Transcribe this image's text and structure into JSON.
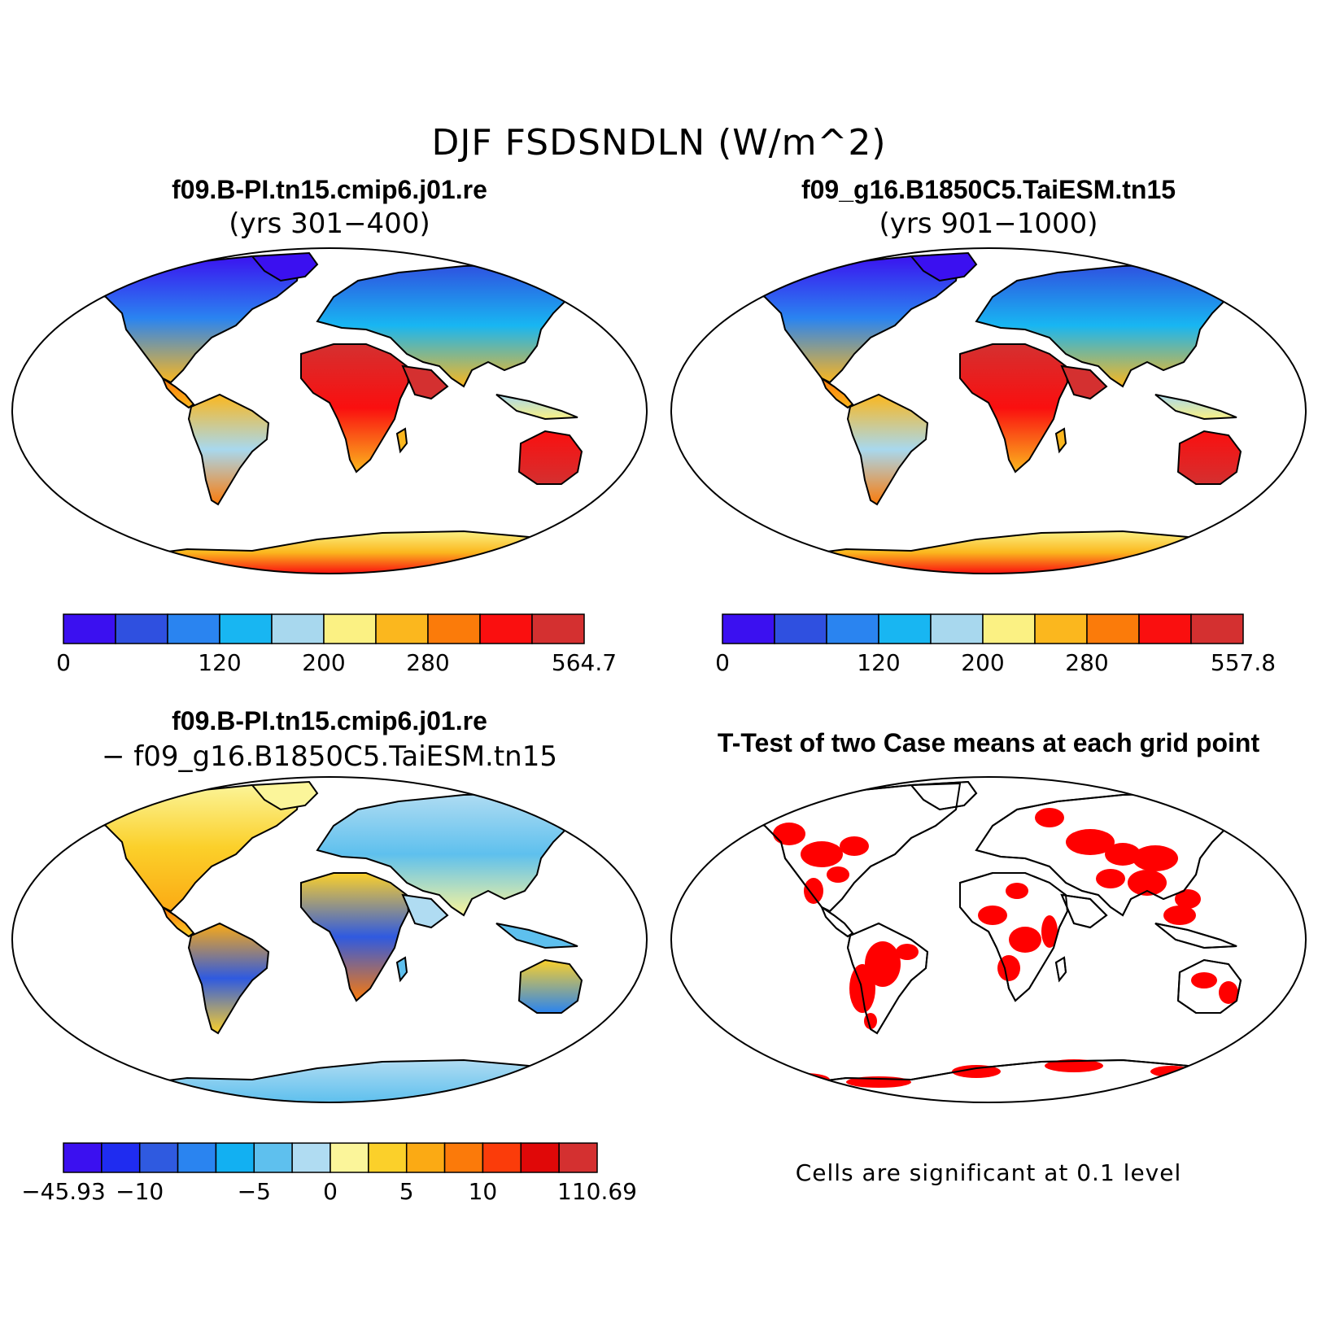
{
  "title": "DJF FSDSNDLN (W/m^2)",
  "panels": [
    {
      "id": "case1",
      "title": "f09.B-PI.tn15.cmip6.j01.re",
      "subtitle": "(yrs 301−400)",
      "colorbar": {
        "colors": [
          "#3b10f0",
          "#2f50e0",
          "#2a84f0",
          "#18b6f2",
          "#a8d8ee",
          "#fbf183",
          "#fbb71e",
          "#fb7b0a",
          "#fa0f0f",
          "#d43030"
        ],
        "ticks": [
          {
            "label": "0",
            "index": 0
          },
          {
            "label": "120",
            "index": 3
          },
          {
            "label": "200",
            "index": 5
          },
          {
            "label": "280",
            "index": 7
          },
          {
            "label": "564.7",
            "index": 10
          }
        ]
      }
    },
    {
      "id": "case2",
      "title": "f09_g16.B1850C5.TaiESM.tn15",
      "subtitle": "(yrs 901−1000)",
      "colorbar": {
        "colors": [
          "#3b10f0",
          "#2f50e0",
          "#2a84f0",
          "#18b6f2",
          "#a8d8ee",
          "#fbf183",
          "#fbb71e",
          "#fb7b0a",
          "#fa0f0f",
          "#d43030"
        ],
        "ticks": [
          {
            "label": "0",
            "index": 0
          },
          {
            "label": "120",
            "index": 3
          },
          {
            "label": "200",
            "index": 5
          },
          {
            "label": "280",
            "index": 7
          },
          {
            "label": "557.8",
            "index": 10
          }
        ]
      }
    },
    {
      "id": "diff",
      "title": "f09.B-PI.tn15.cmip6.j01.re",
      "subtitle": "− f09_g16.B1850C5.TaiESM.tn15",
      "colorbar": {
        "colors": [
          "#3b10f0",
          "#1f2cf0",
          "#2f5ae0",
          "#2a84f0",
          "#12b0f2",
          "#5ec0ee",
          "#b0dcf2",
          "#fbf59a",
          "#fbd02a",
          "#fbaa14",
          "#fb7a0a",
          "#fb3c0a",
          "#e00808",
          "#d43030"
        ],
        "ticks": [
          {
            "label": "−45.93",
            "index": 0
          },
          {
            "label": "−10",
            "index": 2
          },
          {
            "label": "−5",
            "index": 5
          },
          {
            "label": "0",
            "index": 7
          },
          {
            "label": "5",
            "index": 9
          },
          {
            "label": "10",
            "index": 11
          },
          {
            "label": "110.69",
            "index": 14
          }
        ]
      }
    },
    {
      "id": "ttest",
      "title": "T-Test of two Case means at each grid point",
      "note": "Cells are significant at 0.1 level",
      "colors": {
        "significant": "#ff0000"
      }
    }
  ]
}
